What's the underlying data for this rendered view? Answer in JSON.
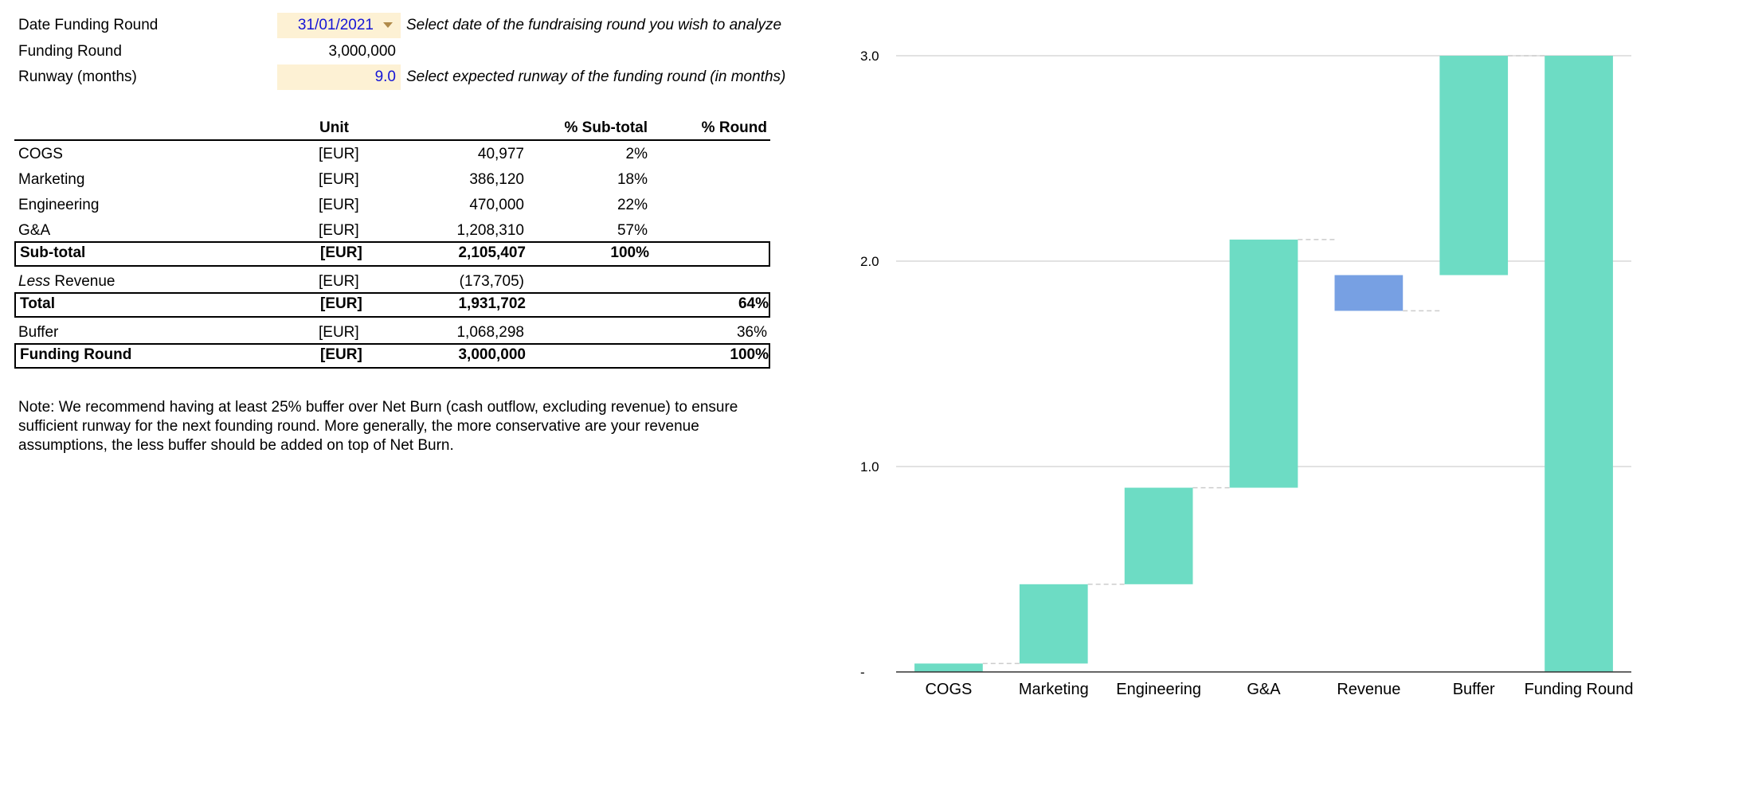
{
  "params": {
    "date_label": "Date Funding Round",
    "date_value": "31/01/2021",
    "date_hint": "Select date of the fundraising round you wish to analyze",
    "funding_label": "Funding Round",
    "funding_value": "3,000,000",
    "runway_label": "Runway (months)",
    "runway_value": "9.0",
    "runway_hint": "Select expected runway of the funding round (in months)"
  },
  "table": {
    "headers": {
      "unit": "Unit",
      "sub_total": "% Sub-total",
      "round": "% Round"
    },
    "rows": [
      {
        "label": "COGS",
        "unit": "[EUR]",
        "amount": "40,977",
        "pct_sub": "2%",
        "pct_round": ""
      },
      {
        "label": "Marketing",
        "unit": "[EUR]",
        "amount": "386,120",
        "pct_sub": "18%",
        "pct_round": ""
      },
      {
        "label": "Engineering",
        "unit": "[EUR]",
        "amount": "470,000",
        "pct_sub": "22%",
        "pct_round": ""
      },
      {
        "label": "G&A",
        "unit": "[EUR]",
        "amount": "1,208,310",
        "pct_sub": "57%",
        "pct_round": ""
      },
      {
        "label": "Sub-total",
        "unit": "[EUR]",
        "amount": "2,105,407",
        "pct_sub": "100%",
        "pct_round": ""
      },
      {
        "label_italic": "Less",
        "label_rest": " Revenue",
        "unit": "[EUR]",
        "amount": "(173,705)",
        "pct_sub": "",
        "pct_round": ""
      },
      {
        "label": "Total",
        "unit": "[EUR]",
        "amount": "1,931,702",
        "pct_sub": "",
        "pct_round": "64%"
      },
      {
        "label": "Buffer",
        "unit": "[EUR]",
        "amount": "1,068,298",
        "pct_sub": "",
        "pct_round": "36%"
      },
      {
        "label": "Funding Round",
        "unit": "[EUR]",
        "amount": "3,000,000",
        "pct_sub": "",
        "pct_round": "100%"
      }
    ]
  },
  "note": "Note: We recommend having at least 25% buffer over Net Burn (cash outflow, excluding revenue) to ensure sufficient runway for the next founding round. More generally, the more conservative are your revenue assumptions, the less buffer should be added on top of Net Burn.",
  "colors": {
    "increase": "#6ddcc4",
    "decrease": "#77a0e3",
    "grid": "#d9d9d9",
    "input_bg": "#fdf1d4",
    "input_text": "#1515d6"
  },
  "chart_data": {
    "type": "waterfall",
    "categories": [
      "COGS",
      "Marketing",
      "Engineering",
      "G&A",
      "Revenue",
      "Buffer",
      "Funding Round"
    ],
    "values": [
      0.041,
      0.386,
      0.47,
      1.208,
      -0.174,
      1.068,
      3.0
    ],
    "bases": [
      0,
      0.041,
      0.427,
      0.897,
      1.932,
      1.932,
      0
    ],
    "yticks": [
      0,
      1.0,
      2.0,
      3.0
    ],
    "ytick_labels": [
      "-",
      "1.0",
      "2.0",
      "3.0"
    ],
    "ylim": [
      0,
      3.0
    ],
    "grid": true,
    "legend": "none"
  }
}
